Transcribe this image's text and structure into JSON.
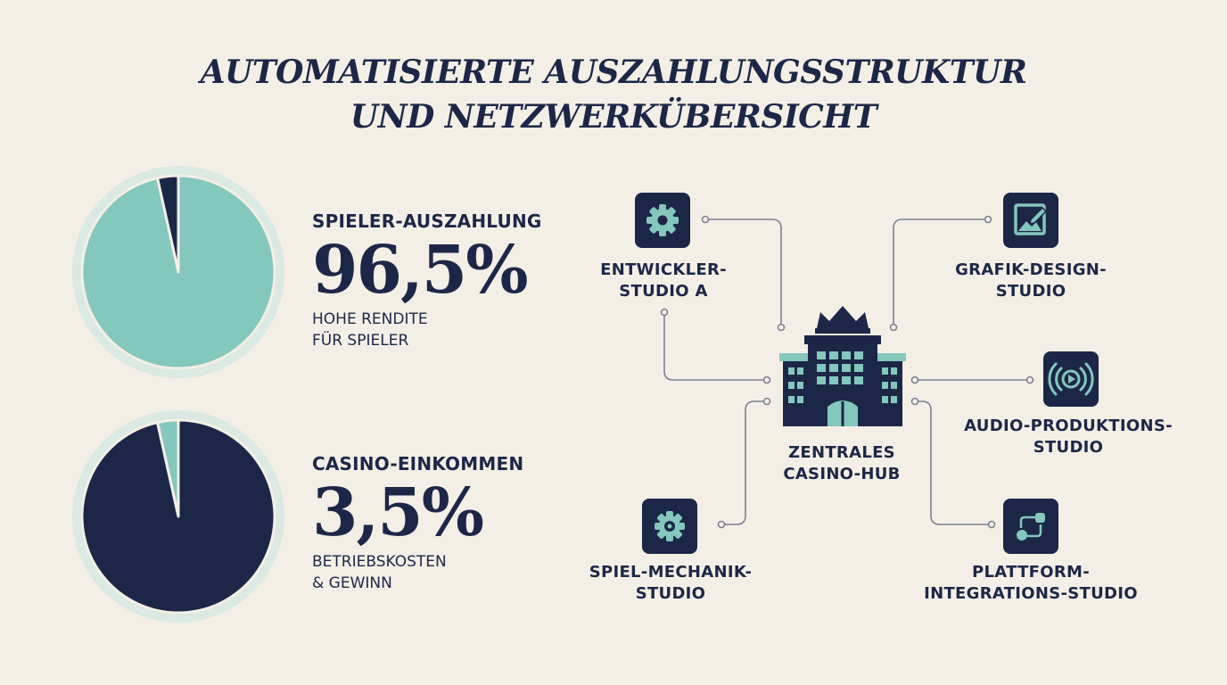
{
  "title": {
    "line1": "AUTOMATISIERTE AUSZAHLUNGSSTRUKTUR",
    "line2": "UND NETZWERKÜBERSICHT"
  },
  "colors": {
    "navy": "#1c2748",
    "teal": "#84c7bc",
    "background": "#f4efe6",
    "connector": "#7b8190"
  },
  "stats": [
    {
      "label": "SPIELER-AUSZAHLUNG",
      "value": "96,5%",
      "desc": [
        "HOHE RENDITE",
        "FÜR SPIELER"
      ],
      "highlight": "teal"
    },
    {
      "label": "CASINO-EINKOMMEN",
      "value": "3,5%",
      "desc": [
        "BETRIEBSKOSTEN",
        "& GEWINN"
      ],
      "highlight": "navy"
    }
  ],
  "chart_data": [
    {
      "type": "pie",
      "slices": [
        {
          "label": "SPIELER-AUSZAHLUNG",
          "value": 96.5,
          "color": "#84c7bc"
        },
        {
          "label": "CASINO-EINKOMMEN",
          "value": 3.5,
          "color": "#1c2748"
        }
      ],
      "highlight": "SPIELER-AUSZAHLUNG"
    },
    {
      "type": "pie",
      "slices": [
        {
          "label": "SPIELER-AUSZAHLUNG",
          "value": 96.5,
          "color": "#1c2748"
        },
        {
          "label": "CASINO-EINKOMMEN",
          "value": 3.5,
          "color": "#84c7bc"
        }
      ],
      "highlight": "CASINO-EINKOMMEN"
    }
  ],
  "network": {
    "hub": {
      "label": [
        "ZENTRALES",
        "CASINO-HUB"
      ],
      "icon": "casino-building-crown-icon"
    },
    "nodes": [
      {
        "id": "entwickler",
        "label": [
          "ENTWICKLER-",
          "STUDIO A"
        ],
        "icon": "gear-icon"
      },
      {
        "id": "grafik",
        "label": [
          "GRAFIK-DESIGN-",
          "STUDIO"
        ],
        "icon": "image-edit-icon"
      },
      {
        "id": "audio",
        "label": [
          "AUDIO-PRODUKTIONS-",
          "STUDIO"
        ],
        "icon": "audio-play-icon"
      },
      {
        "id": "spiel",
        "label": [
          "SPIEL-MECHANIK-",
          "STUDIO"
        ],
        "icon": "gear-cog-icon"
      },
      {
        "id": "plattform",
        "label": [
          "PLATTFORM-",
          "INTEGRATIONS-STUDIO"
        ],
        "icon": "integration-nodes-icon"
      }
    ]
  }
}
